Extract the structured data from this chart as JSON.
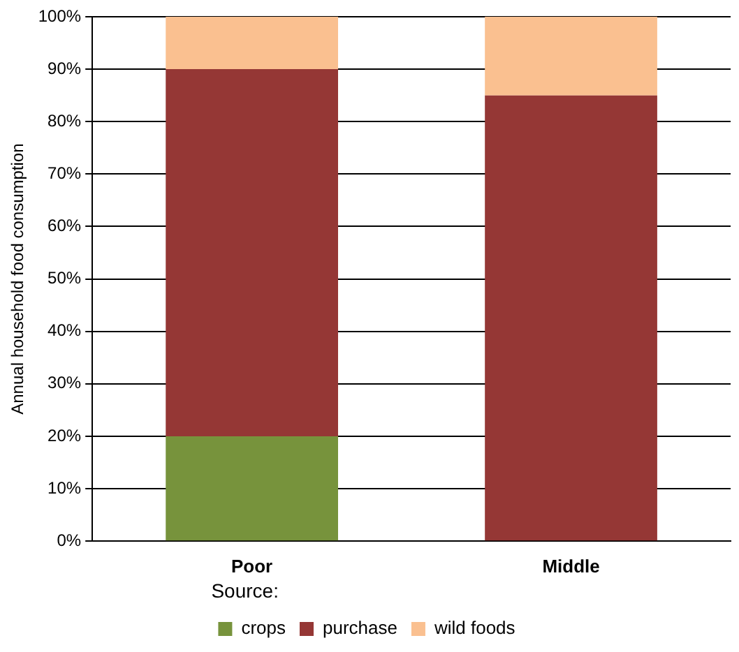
{
  "chart_data": {
    "type": "bar",
    "stacked": true,
    "ylabel": "Annual household food consumption",
    "categories": [
      "Poor",
      "Middle"
    ],
    "series": [
      {
        "name": "crops",
        "color": "#77933c",
        "values": [
          20,
          0
        ]
      },
      {
        "name": "purchase",
        "color": "#953735",
        "values": [
          70,
          85
        ]
      },
      {
        "name": "wild foods",
        "color": "#fac090",
        "values": [
          10,
          15
        ]
      }
    ],
    "ylim": [
      0,
      100
    ],
    "yticks": [
      {
        "value": 0,
        "label": "0%"
      },
      {
        "value": 10,
        "label": "10%"
      },
      {
        "value": 20,
        "label": "20%"
      },
      {
        "value": 30,
        "label": "30%"
      },
      {
        "value": 40,
        "label": "40%"
      },
      {
        "value": 50,
        "label": "50%"
      },
      {
        "value": 60,
        "label": "60%"
      },
      {
        "value": 70,
        "label": "70%"
      },
      {
        "value": 80,
        "label": "80%"
      },
      {
        "value": 90,
        "label": "90%"
      },
      {
        "value": 100,
        "label": "100%"
      }
    ],
    "grid": "y",
    "legend": "bottom",
    "annotations": [
      "Source:"
    ]
  }
}
